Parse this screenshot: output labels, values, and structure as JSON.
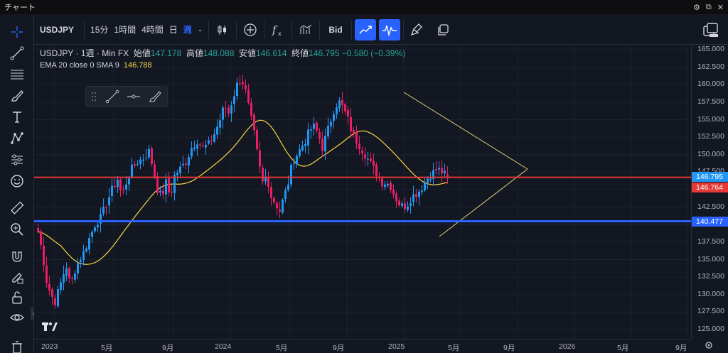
{
  "window": {
    "title": "チャート"
  },
  "toolbar": {
    "symbol": "USDJPY",
    "intervals": [
      "15分",
      "1時間",
      "4時間",
      "日",
      "週"
    ],
    "bid_label": "Bid"
  },
  "legend": {
    "symbol": "USDJPY",
    "sep1": "·",
    "interval": "1週",
    "sep2": "·",
    "source": "Min FX",
    "open_label": "始値",
    "open": "147.178",
    "high_label": "高値",
    "high": "148.088",
    "low_label": "安値",
    "low": "146.614",
    "close_label": "終値",
    "close": "146.795",
    "change": "−0.580 (−0.39%)"
  },
  "indicator": {
    "label": "EMA 20 close 0 SMA 9",
    "value": "146.788"
  },
  "price_axis": {
    "labels": [
      "165.000",
      "162.500",
      "160.000",
      "157.500",
      "155.000",
      "152.500",
      "150.000",
      "147.500",
      "142.500",
      "137.500",
      "135.000",
      "132.500",
      "130.000",
      "127.500",
      "125.000"
    ],
    "last_price": "146.795",
    "red_line": "146.764",
    "blue_line": "140.477"
  },
  "time_axis": {
    "labels": [
      "2023",
      "5月",
      "9月",
      "2024",
      "5月",
      "9月",
      "2025",
      "5月",
      "9月",
      "2026",
      "5月",
      "9月"
    ]
  },
  "colors": {
    "up": "#26a69a",
    "down": "#ef5350",
    "bull_candle": "#2196f3",
    "bear_candle": "#e91e63",
    "ema": "#f5d742",
    "red_line": "#e53935",
    "blue_line": "#2962ff",
    "trendline": "#e8d27a"
  },
  "icons": {
    "left_toolbar": [
      "crosshair-icon",
      "trendline-icon",
      "fib-icon",
      "brush-icon",
      "text-icon",
      "pattern-icon",
      "prediction-icon",
      "emoji-icon",
      "ruler-icon",
      "zoom-in-icon",
      "magnet-icon",
      "lock-draw-icon",
      "lock-icon",
      "eye-icon",
      "trash-icon"
    ]
  }
}
